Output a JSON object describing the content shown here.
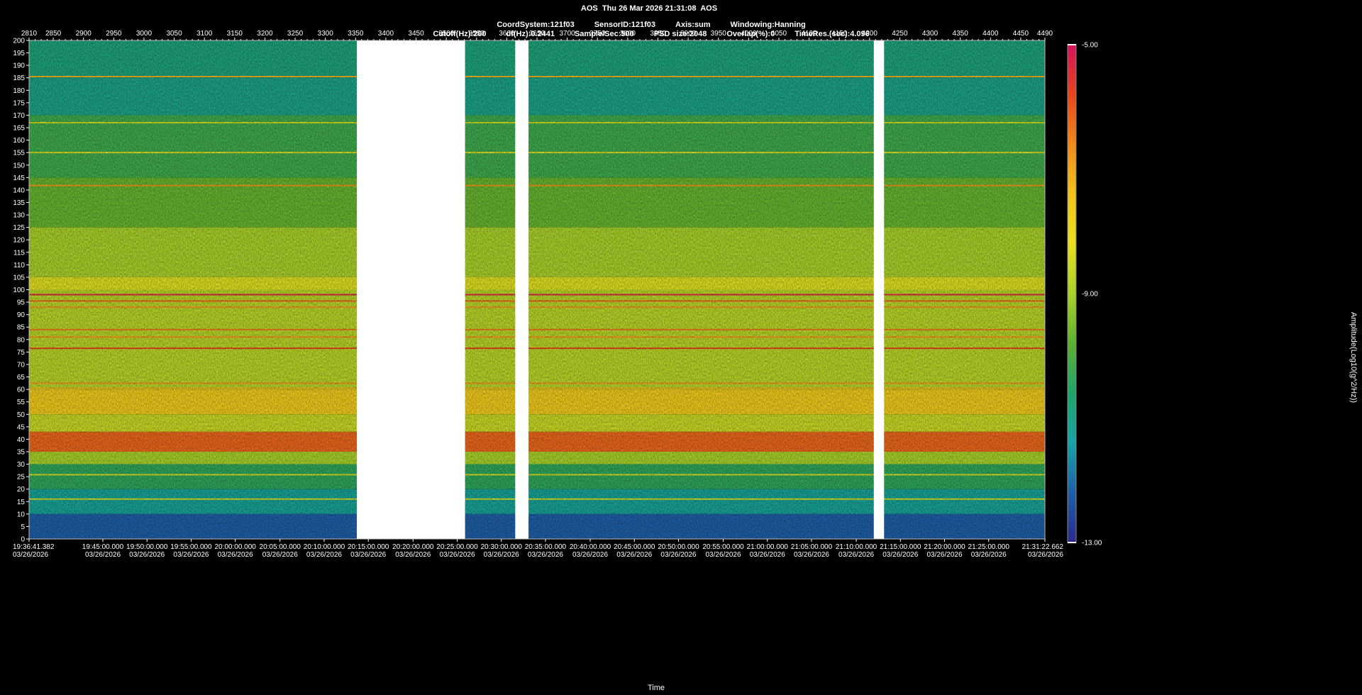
{
  "header": {
    "line1": "AOS  Thu 26 Mar 2026 21:31:08  AOS",
    "line2": [
      "CoordSystem:121f03",
      "SensorID:121f03",
      "Axis:sum",
      "Windowing:Hanning"
    ],
    "line3": [
      "Cutoff(Hz):200",
      "df(Hz):0.2441",
      "Sample/Sec:500",
      "PSD size:2048",
      "Overlap(%):0",
      "TimeRes.(sec):4.096"
    ]
  },
  "colorbar": {
    "title": "Amplitude(Log10(g^2/Hz))",
    "ticks": [
      "-5.00",
      "-9.00",
      "-13.00"
    ],
    "colors": [
      "#d4145a",
      "#e8431e",
      "#f08a1c",
      "#f3c31b",
      "#e9e11f",
      "#a9d12a",
      "#5db131",
      "#20a46a",
      "#17a2a6",
      "#1f5fa8",
      "#2a2a8a"
    ]
  },
  "chart_data": {
    "type": "heatmap",
    "title": "AOS  Thu 26 Mar 2026 21:31:08  AOS",
    "xlabel": "Time",
    "ylabel": "",
    "top_axis_ticks": [
      2810,
      2850,
      2900,
      2950,
      3000,
      3050,
      3100,
      3150,
      3200,
      3250,
      3300,
      3350,
      3400,
      3450,
      3500,
      3550,
      3600,
      3650,
      3700,
      3750,
      3800,
      3850,
      3900,
      3950,
      4000,
      4050,
      4100,
      4150,
      4200,
      4250,
      4300,
      4350,
      4400,
      4450,
      4490
    ],
    "ylim": [
      0,
      200
    ],
    "yticks": [
      200,
      195,
      190,
      185,
      180,
      175,
      170,
      165,
      160,
      155,
      150,
      145,
      140,
      135,
      130,
      125,
      120,
      115,
      110,
      105,
      100,
      95,
      90,
      85,
      80,
      75,
      70,
      65,
      60,
      55,
      50,
      45,
      40,
      35,
      30,
      25,
      20,
      15,
      10,
      5,
      0
    ],
    "bottom_ticks": [
      {
        "time": "19:36:41.382",
        "date": "03/26/2026",
        "x": 2810
      },
      {
        "time": "19:45:00.000",
        "date": "03/26/2026",
        "x": 2932
      },
      {
        "time": "19:50:00.000",
        "date": "03/26/2026",
        "x": 3005
      },
      {
        "time": "19:55:00.000",
        "date": "03/26/2026",
        "x": 3078
      },
      {
        "time": "20:00:00.000",
        "date": "03/26/2026",
        "x": 3151
      },
      {
        "time": "20:05:00.000",
        "date": "03/26/2026",
        "x": 3225
      },
      {
        "time": "20:10:00.000",
        "date": "03/26/2026",
        "x": 3298
      },
      {
        "time": "20:15:00.000",
        "date": "03/26/2026",
        "x": 3371
      },
      {
        "time": "20:20:00.000",
        "date": "03/26/2026",
        "x": 3445
      },
      {
        "time": "20:25:00.000",
        "date": "03/26/2026",
        "x": 3518
      },
      {
        "time": "20:30:00.000",
        "date": "03/26/2026",
        "x": 3591
      },
      {
        "time": "20:35:00.000",
        "date": "03/26/2026",
        "x": 3664
      },
      {
        "time": "20:40:00.000",
        "date": "03/26/2026",
        "x": 3738
      },
      {
        "time": "20:45:00.000",
        "date": "03/26/2026",
        "x": 3811
      },
      {
        "time": "20:50:00.000",
        "date": "03/26/2026",
        "x": 3884
      },
      {
        "time": "20:55:00.000",
        "date": "03/26/2026",
        "x": 3958
      },
      {
        "time": "21:00:00.000",
        "date": "03/26/2026",
        "x": 4031
      },
      {
        "time": "21:05:00.000",
        "date": "03/26/2026",
        "x": 4104
      },
      {
        "time": "21:10:00.000",
        "date": "03/26/2026",
        "x": 4178
      },
      {
        "time": "21:15:00.000",
        "date": "03/26/2026",
        "x": 4251
      },
      {
        "time": "21:20:00.000",
        "date": "03/26/2026",
        "x": 4324
      },
      {
        "time": "21:25:00.000",
        "date": "03/26/2026",
        "x": 4397
      },
      {
        "time": "21:31:22.662",
        "date": "03/26/2026",
        "x": 4490
      }
    ],
    "gaps": [
      [
        3352,
        3531
      ],
      [
        3614,
        3636
      ],
      [
        4207,
        4224
      ]
    ],
    "frequency_bands": [
      {
        "from": 185,
        "to": 200,
        "level": -10.8
      },
      {
        "from": 170,
        "to": 185,
        "level": -11.0
      },
      {
        "from": 145,
        "to": 170,
        "level": -10.2
      },
      {
        "from": 125,
        "to": 145,
        "level": -9.7
      },
      {
        "from": 105,
        "to": 125,
        "level": -9.0
      },
      {
        "from": 100,
        "to": 105,
        "level": -8.3
      },
      {
        "from": 60,
        "to": 100,
        "level": -8.8
      },
      {
        "from": 50,
        "to": 60,
        "level": -7.6
      },
      {
        "from": 43,
        "to": 50,
        "level": -8.6
      },
      {
        "from": 35,
        "to": 43,
        "level": -6.2
      },
      {
        "from": 30,
        "to": 35,
        "level": -9.0
      },
      {
        "from": 20,
        "to": 30,
        "level": -10.4
      },
      {
        "from": 10,
        "to": 20,
        "level": -11.2
      },
      {
        "from": 0,
        "to": 10,
        "level": -12.2
      }
    ],
    "tonal_lines": [
      {
        "freq": 185.5,
        "level": -7.2
      },
      {
        "freq": 167,
        "level": -8.5
      },
      {
        "freq": 155,
        "level": -8.3
      },
      {
        "freq": 141.8,
        "level": -6.8
      },
      {
        "freq": 98,
        "level": -5.3
      },
      {
        "freq": 95.5,
        "level": -6.2
      },
      {
        "freq": 93,
        "level": -6.8
      },
      {
        "freq": 84,
        "level": -6.4
      },
      {
        "freq": 81,
        "level": -6.8
      },
      {
        "freq": 76.5,
        "level": -5.8
      },
      {
        "freq": 62.5,
        "level": -6.8
      },
      {
        "freq": 60.5,
        "level": -7.2
      },
      {
        "freq": 25.8,
        "level": -8.4
      },
      {
        "freq": 16,
        "level": -8.4
      }
    ],
    "zlim": [
      -13,
      -5
    ]
  }
}
